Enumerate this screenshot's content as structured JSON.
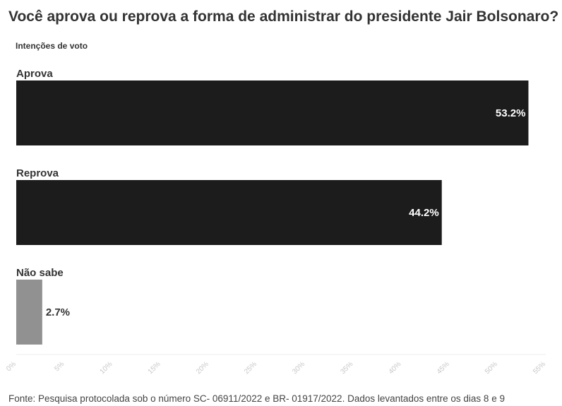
{
  "title": "Você aprova ou reprova a forma de administrar do presidente Jair Bolsonaro?",
  "subtitle": "Intenções de voto",
  "footer": "Fonte: Pesquisa protocolada sob o número SC- 06911/2022 e BR- 01917/2022. Dados levantados entre os dias 8 e 9",
  "colors": {
    "bar_dark": "#1c1c1c",
    "bar_gray": "#919191",
    "text": "#333333",
    "axis_tick": "#c8c8c8"
  },
  "chart_data": {
    "type": "bar",
    "orientation": "horizontal",
    "categories": [
      "Aprova",
      "Reprova",
      "Não sabe"
    ],
    "values": [
      53.2,
      44.2,
      2.7
    ],
    "value_labels": [
      "53.2%",
      "44.2%",
      "2.7%"
    ],
    "bar_colors": [
      "#1c1c1c",
      "#1c1c1c",
      "#919191"
    ],
    "xlim": [
      0,
      55
    ],
    "x_ticks": [
      0,
      5,
      10,
      15,
      20,
      25,
      30,
      35,
      40,
      45,
      50,
      55
    ],
    "x_tick_labels": [
      "0%",
      "5%",
      "10%",
      "15%",
      "20%",
      "25%",
      "30%",
      "35%",
      "40%",
      "45%",
      "50%",
      "55%"
    ],
    "grid": false,
    "legend": "none"
  }
}
